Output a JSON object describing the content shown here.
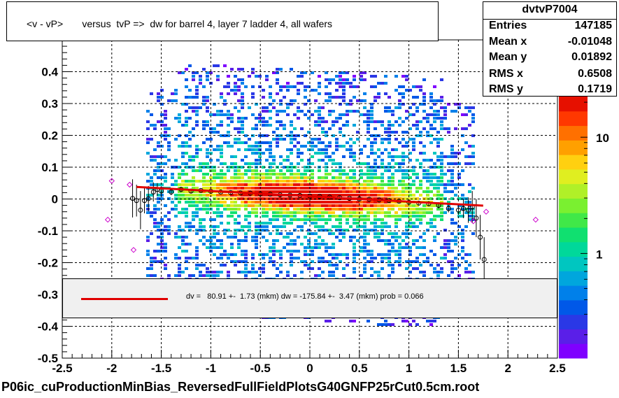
{
  "header": {
    "title": "<v - vP>       versus  tvP =>  dw for barrel 4, layer 7 ladder 4, all wafers"
  },
  "stats": {
    "name": "dvtvP7004",
    "rows": [
      {
        "key": "Entries",
        "value": "147185"
      },
      {
        "key": "Mean x",
        "value": "-0.01048"
      },
      {
        "key": "Mean y",
        "value": "0.01892"
      },
      {
        "key": "RMS x",
        "value": "0.6508"
      },
      {
        "key": "RMS y",
        "value": "0.1719"
      }
    ]
  },
  "fit": {
    "text": "dv =   80.91 +-  1.73 (mkm) dw = -175.84 +-  3.47 (mkm) prob = 0.066"
  },
  "footer": {
    "filename": "P06ic_cuProductionMinBias_ReversedFullFieldPlotsG40GNFP25rCut0.5cm.root"
  },
  "colors": {
    "fit_line": "#e00000",
    "profile_markers": "#000000",
    "overflow_markers": "#cc00cc"
  },
  "chart_data": {
    "type": "heatmap",
    "x_axis": {
      "min": -2.5,
      "max": 2.5,
      "ticks": [
        -2.5,
        -2,
        -1.5,
        -1,
        -0.5,
        0,
        0.5,
        1,
        1.5,
        2,
        2.5
      ],
      "tick_labels": [
        "-2.5",
        "-2",
        "-1.5",
        "-1",
        "-0.5",
        "0",
        "0.5",
        "1",
        "1.5",
        "2",
        "2.5"
      ]
    },
    "y_axis": {
      "min": -0.5,
      "max": 0.5,
      "ticks": [
        -0.5,
        -0.4,
        -0.3,
        -0.2,
        -0.1,
        0,
        0.1,
        0.2,
        0.3,
        0.4
      ],
      "tick_labels": [
        "-0.5",
        "-0.4",
        "-0.3",
        "-0.2",
        "-0.1",
        "0",
        "0.1",
        "0.2",
        "0.3",
        "0.4"
      ]
    },
    "z_axis": {
      "scale": "log",
      "tick_labels": [
        "1",
        "10"
      ],
      "tick_values": [
        1,
        10
      ]
    },
    "grid": true,
    "fit_line": {
      "x": [
        -1.75,
        1.75
      ],
      "y": [
        0.038,
        -0.021
      ]
    },
    "profile_points": [
      {
        "x": -1.79,
        "y": 0.002,
        "err": 0.06
      },
      {
        "x": -1.75,
        "y": -0.005,
        "err": 0.05
      },
      {
        "x": -1.71,
        "y": -0.035,
        "err": 0.06
      },
      {
        "x": -1.67,
        "y": -0.005,
        "err": 0.04
      },
      {
        "x": -1.63,
        "y": 0.001,
        "err": 0.04
      },
      {
        "x": -1.58,
        "y": 0.022,
        "err": 0.03
      },
      {
        "x": -1.54,
        "y": 0.03,
        "err": 0.02
      },
      {
        "x": -1.5,
        "y": 0.025,
        "err": 0.015
      },
      {
        "x": -1.4,
        "y": 0.022,
        "err": 0.01
      },
      {
        "x": -1.3,
        "y": 0.03,
        "err": 0.008
      },
      {
        "x": -1.2,
        "y": 0.025,
        "err": 0.006
      },
      {
        "x": -1.1,
        "y": 0.027,
        "err": 0.005
      },
      {
        "x": -1.0,
        "y": 0.024,
        "err": 0.004
      },
      {
        "x": -0.9,
        "y": 0.022,
        "err": 0.004
      },
      {
        "x": -0.8,
        "y": 0.02,
        "err": 0.004
      },
      {
        "x": -0.7,
        "y": 0.019,
        "err": 0.004
      },
      {
        "x": -0.6,
        "y": 0.018,
        "err": 0.004
      },
      {
        "x": -0.5,
        "y": 0.016,
        "err": 0.004
      },
      {
        "x": -0.4,
        "y": 0.015,
        "err": 0.004
      },
      {
        "x": -0.3,
        "y": 0.013,
        "err": 0.004
      },
      {
        "x": -0.2,
        "y": 0.012,
        "err": 0.004
      },
      {
        "x": -0.1,
        "y": 0.011,
        "err": 0.004
      },
      {
        "x": 0.0,
        "y": 0.009,
        "err": 0.004
      },
      {
        "x": 0.1,
        "y": 0.008,
        "err": 0.004
      },
      {
        "x": 0.2,
        "y": 0.006,
        "err": 0.004
      },
      {
        "x": 0.3,
        "y": 0.004,
        "err": 0.004
      },
      {
        "x": 0.4,
        "y": 0.002,
        "err": 0.004
      },
      {
        "x": 0.5,
        "y": 0.0,
        "err": 0.004
      },
      {
        "x": 0.6,
        "y": -0.001,
        "err": 0.004
      },
      {
        "x": 0.7,
        "y": -0.003,
        "err": 0.004
      },
      {
        "x": 0.8,
        "y": -0.005,
        "err": 0.005
      },
      {
        "x": 0.9,
        "y": -0.007,
        "err": 0.005
      },
      {
        "x": 1.0,
        "y": -0.01,
        "err": 0.006
      },
      {
        "x": 1.1,
        "y": -0.013,
        "err": 0.006
      },
      {
        "x": 1.2,
        "y": -0.015,
        "err": 0.008
      },
      {
        "x": 1.3,
        "y": -0.02,
        "err": 0.01
      },
      {
        "x": 1.4,
        "y": -0.03,
        "err": 0.012
      },
      {
        "x": 1.5,
        "y": -0.035,
        "err": 0.015
      },
      {
        "x": 1.55,
        "y": -0.03,
        "err": 0.03
      },
      {
        "x": 1.6,
        "y": -0.035,
        "err": 0.04
      },
      {
        "x": 1.64,
        "y": -0.025,
        "err": 0.05
      },
      {
        "x": 1.68,
        "y": -0.06,
        "err": 0.06
      },
      {
        "x": 1.72,
        "y": -0.12,
        "err": 0.07
      },
      {
        "x": 1.76,
        "y": -0.19,
        "err": 0.07
      }
    ],
    "overflow_points": [
      {
        "x": -2.04,
        "y": -0.065
      },
      {
        "x": -2.0,
        "y": 0.057
      },
      {
        "x": -1.82,
        "y": 0.045
      },
      {
        "x": -1.78,
        "y": -0.16
      },
      {
        "x": 1.78,
        "y": -0.04
      },
      {
        "x": 1.65,
        "y": -0.07
      },
      {
        "x": 2.28,
        "y": -0.065
      }
    ]
  }
}
